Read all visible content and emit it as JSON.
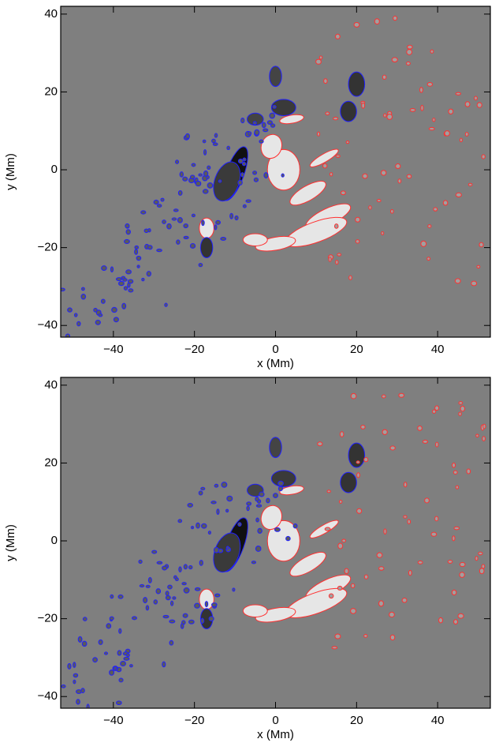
{
  "chart_data": [
    {
      "type": "image",
      "xlabel": "x (Mm)",
      "ylabel": "y (Mm)",
      "xlim": [
        -53,
        53
      ],
      "ylim": [
        -43,
        42
      ],
      "xticks": [
        {
          "value": -40,
          "label": "−40"
        },
        {
          "value": -20,
          "label": "−20"
        },
        0,
        20,
        40
      ],
      "yticks": [
        {
          "value": -40,
          "label": "−40"
        },
        {
          "value": -20,
          "label": "−20"
        },
        0,
        20,
        40
      ]
    },
    {
      "type": "image",
      "xlabel": "x (Mm)",
      "ylabel": "y (Mm)",
      "xlim": [
        -53,
        53
      ],
      "ylim": [
        -43,
        42
      ],
      "xticks": [
        {
          "value": -40,
          "label": "−40"
        },
        {
          "value": -20,
          "label": "−20"
        },
        0,
        20,
        40
      ],
      "yticks": [
        {
          "value": -40,
          "label": "−40"
        },
        {
          "value": -20,
          "label": "−20"
        },
        0,
        20,
        40
      ]
    }
  ]
}
